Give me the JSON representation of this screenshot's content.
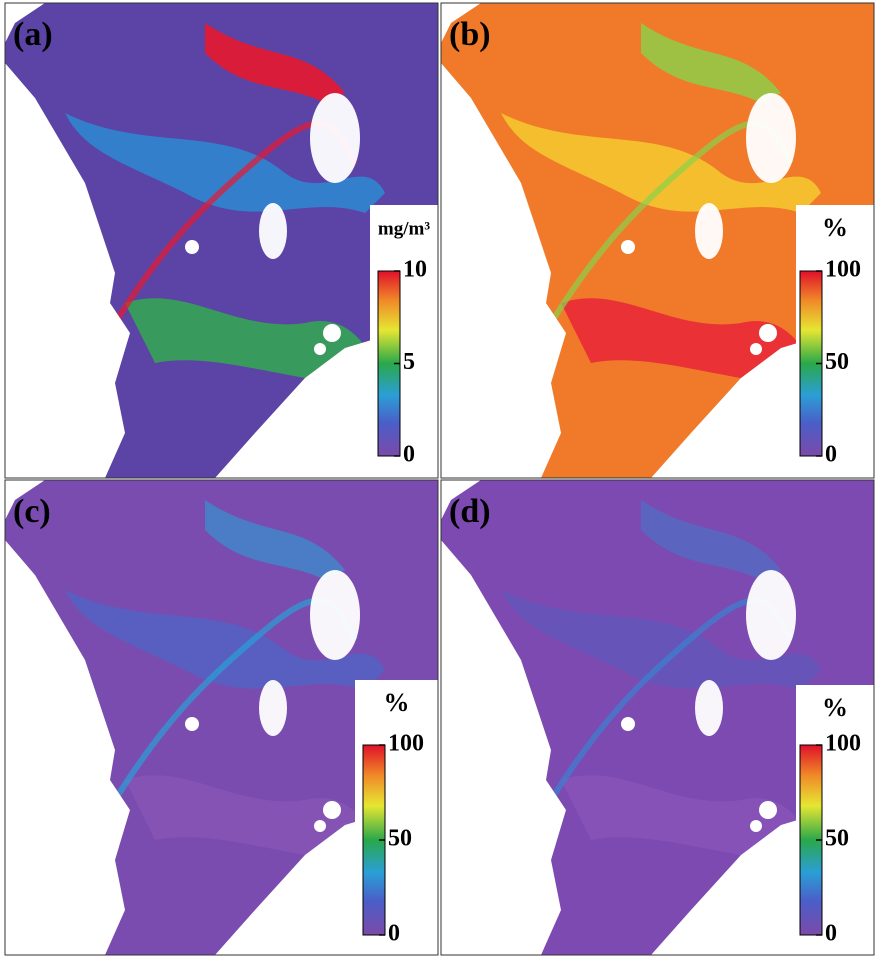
{
  "panels": [
    {
      "label": "(a)",
      "unit": "mg/m³",
      "clim": [
        0,
        10
      ],
      "ticks": [
        0,
        5,
        10
      ]
    },
    {
      "label": "(b)",
      "unit": "%",
      "clim": [
        0,
        100
      ],
      "ticks": [
        0,
        50,
        100
      ]
    },
    {
      "label": "(c)",
      "unit": "%",
      "clim": [
        0,
        100
      ],
      "ticks": [
        0,
        50,
        100
      ]
    },
    {
      "label": "(d)",
      "unit": "%",
      "clim": [
        0,
        100
      ],
      "ticks": [
        0,
        50,
        100
      ]
    }
  ]
}
